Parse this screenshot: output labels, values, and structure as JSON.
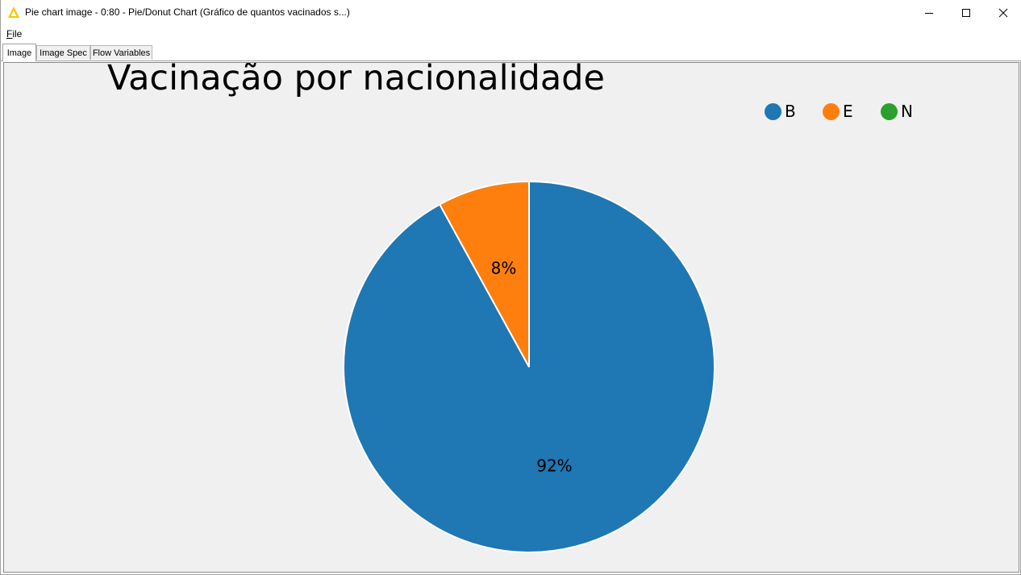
{
  "window": {
    "title": "Pie chart image - 0:80 - Pie/Donut Chart (Gráfico de quantos vacinados s...)",
    "logo_icon": "knime-triangle-icon",
    "controls": [
      "minimize-icon",
      "maximize-icon",
      "close-icon"
    ]
  },
  "menu": {
    "file_first": "F",
    "file_rest": "ile"
  },
  "tabs": [
    {
      "label": "Image",
      "active": true
    },
    {
      "label": "Image Spec",
      "active": false
    },
    {
      "label": "Flow Variables",
      "active": false
    }
  ],
  "colors": {
    "B": "#1f77b4",
    "E": "#ff7f0e",
    "N": "#2ca02c"
  },
  "chart_data": {
    "type": "pie",
    "title": "Vacinação por nacionalidade",
    "categories": [
      "B",
      "E",
      "N"
    ],
    "values": [
      92,
      8,
      0
    ],
    "labels": [
      "92%",
      "8%",
      ""
    ],
    "legend": [
      "B",
      "E",
      "N"
    ],
    "legend_position": "top-right",
    "start_angle": "12 o'clock",
    "direction": "clockwise"
  }
}
